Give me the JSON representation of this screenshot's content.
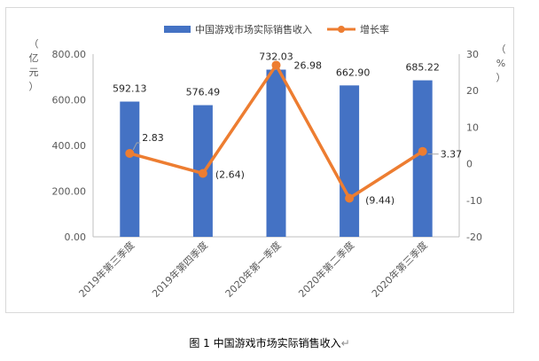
{
  "caption": "图 1  中国游戏市场实际销售收入",
  "caption_mark": "↵",
  "colors": {
    "bar": "#4472c4",
    "line": "#ed7d31",
    "axis": "#bfbfbf",
    "text": "#595959",
    "leader": "#a6a6a6"
  },
  "chart_data": {
    "type": "bar",
    "title": "",
    "categories": [
      "2019年第三季度",
      "2019年第四季度",
      "2020年第一季度",
      "2020年第二季度",
      "2020年第三季度"
    ],
    "series": [
      {
        "name": "中国游戏市场实际销售收入",
        "type": "bar",
        "axis": "left",
        "values": [
          592.13,
          576.49,
          732.03,
          662.9,
          685.22
        ],
        "labels": [
          "592.13",
          "576.49",
          "732.03",
          "662.90",
          "685.22"
        ]
      },
      {
        "name": "增长率",
        "type": "line",
        "axis": "right",
        "values": [
          2.83,
          -2.64,
          26.98,
          -9.44,
          3.37
        ],
        "labels": [
          "2.83",
          "(2.64)",
          "26.98",
          "(9.44)",
          "3.37"
        ]
      }
    ],
    "left_axis": {
      "label": [
        "（",
        "亿",
        "元",
        "）"
      ],
      "ylim": [
        0,
        800
      ],
      "ticks": [
        "0.00",
        "200.00",
        "400.00",
        "600.00",
        "800.00"
      ]
    },
    "right_axis": {
      "label": [
        "（",
        "%",
        "）"
      ],
      "ylim": [
        -20,
        30
      ],
      "ticks": [
        "-20",
        "-10",
        "0",
        "10",
        "20",
        "30"
      ]
    },
    "grid": false,
    "legend_position": "top-center"
  }
}
